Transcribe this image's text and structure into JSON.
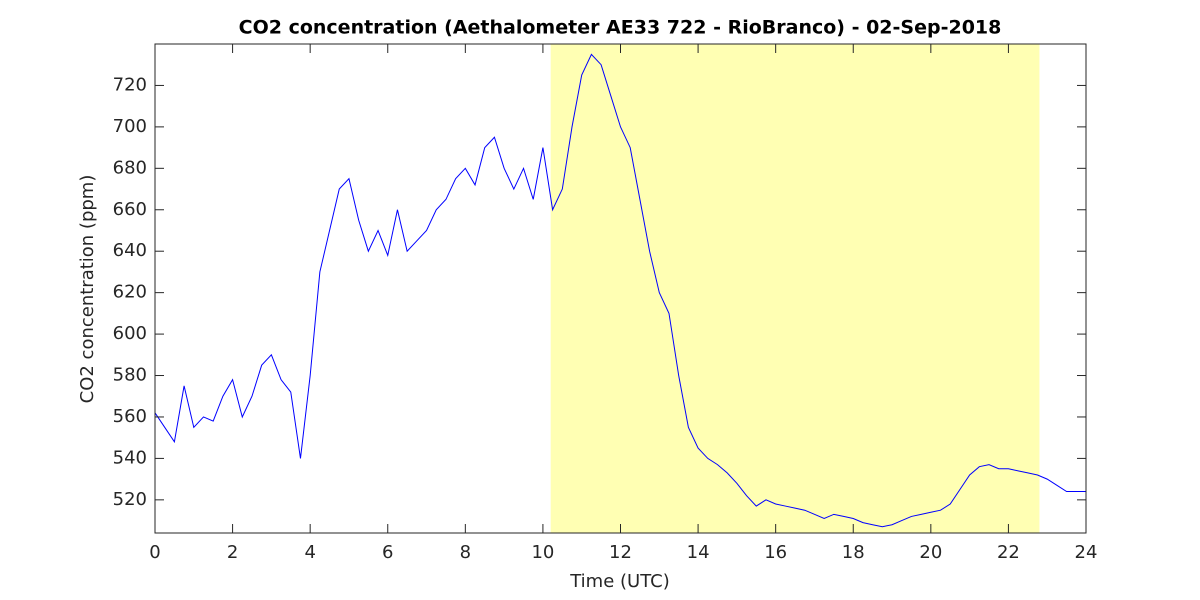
{
  "chart_data": {
    "type": "line",
    "title": "CO2 concentration (Aethalometer AE33 722 - RioBranco) - 02-Sep-2018",
    "xlabel": "Time (UTC)",
    "ylabel": "CO2 concentration (ppm)",
    "shade": [
      10.2,
      22.8
    ],
    "shade_color": "#ffffb3",
    "x": [
      0,
      0.25,
      0.5,
      0.75,
      1,
      1.25,
      1.5,
      1.75,
      2,
      2.25,
      2.5,
      2.75,
      3,
      3.25,
      3.5,
      3.75,
      4,
      4.25,
      4.5,
      4.75,
      5,
      5.25,
      5.5,
      5.75,
      6,
      6.25,
      6.5,
      6.75,
      7,
      7.25,
      7.5,
      7.75,
      8,
      8.25,
      8.5,
      8.75,
      9,
      9.25,
      9.5,
      9.75,
      10,
      10.25,
      10.5,
      10.75,
      11,
      11.25,
      11.5,
      11.75,
      12,
      12.25,
      12.5,
      12.75,
      13,
      13.25,
      13.5,
      13.75,
      14,
      14.25,
      14.5,
      14.75,
      15,
      15.25,
      15.5,
      15.75,
      16,
      16.25,
      16.5,
      16.75,
      17,
      17.25,
      17.5,
      17.75,
      18,
      18.25,
      18.5,
      18.75,
      19,
      19.25,
      19.5,
      19.75,
      20,
      20.25,
      20.5,
      20.75,
      21,
      21.25,
      21.5,
      21.75,
      22,
      22.25,
      22.5,
      22.75,
      23,
      23.25,
      23.5,
      23.75,
      24
    ],
    "series": [
      {
        "color": "#0000ff",
        "values": [
          562,
          555,
          548,
          575,
          555,
          560,
          558,
          570,
          578,
          560,
          570,
          585,
          590,
          578,
          572,
          540,
          580,
          630,
          650,
          670,
          675,
          655,
          640,
          650,
          638,
          660,
          640,
          645,
          650,
          660,
          665,
          675,
          680,
          672,
          690,
          695,
          680,
          670,
          680,
          665,
          690,
          660,
          670,
          700,
          725,
          735,
          730,
          715,
          700,
          690,
          665,
          640,
          620,
          610,
          580,
          555,
          545,
          540,
          537,
          533,
          528,
          522,
          517,
          520,
          518,
          517,
          516,
          515,
          513,
          511,
          513,
          512,
          511,
          509,
          508,
          507,
          508,
          510,
          512,
          513,
          514,
          515,
          518,
          525,
          532,
          536,
          537,
          535,
          535,
          534,
          533,
          532,
          530,
          527,
          524,
          524,
          524
        ]
      }
    ],
    "xlim": [
      0,
      24
    ],
    "xticks": [
      0,
      2,
      4,
      6,
      8,
      10,
      12,
      14,
      16,
      18,
      20,
      22,
      24
    ],
    "ylim": [
      504,
      740
    ],
    "yticks": [
      520,
      540,
      560,
      580,
      600,
      620,
      640,
      660,
      680,
      700,
      720
    ]
  }
}
